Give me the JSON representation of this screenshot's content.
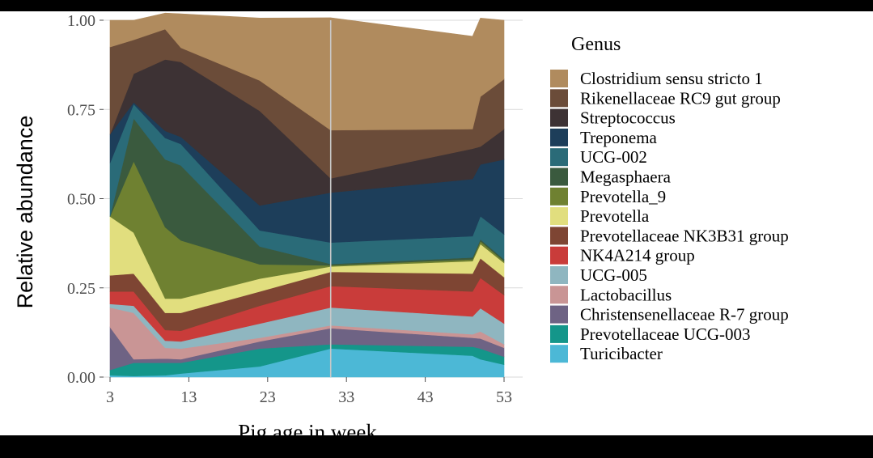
{
  "chart_data": {
    "type": "area",
    "stacked": true,
    "xlabel": "Pig age in week",
    "ylabel": "Relative abundance",
    "xlim": [
      3,
      53
    ],
    "ylim": [
      0,
      1
    ],
    "x_ticks": [
      3,
      13,
      23,
      33,
      43,
      53
    ],
    "y_ticks": [
      0,
      0.25,
      0.5,
      0.75,
      1
    ],
    "y_tick_labels": [
      "0.00",
      "0.25",
      "0.50",
      "0.75",
      "1.00"
    ],
    "grid": true,
    "vertical_reference_line": 31,
    "legend": {
      "title": "Genus",
      "position": "right"
    },
    "x": [
      3,
      6,
      10,
      12,
      22,
      31,
      49,
      50,
      53
    ],
    "series": [
      {
        "name": "Turicibacter",
        "color": "#4cb8d6",
        "values": [
          0.005,
          0.003,
          0.005,
          0.01,
          0.03,
          0.08,
          0.06,
          0.05,
          0.035
        ]
      },
      {
        "name": "Prevotellaceae UCG-003",
        "color": "#14968a",
        "values": [
          0.015,
          0.037,
          0.035,
          0.03,
          0.05,
          0.012,
          0.025,
          0.03,
          0.022
        ]
      },
      {
        "name": "Christensenellaceae R-7 group",
        "color": "#6e6384",
        "values": [
          0.12,
          0.01,
          0.012,
          0.01,
          0.02,
          0.045,
          0.025,
          0.028,
          0.025
        ]
      },
      {
        "name": "Lactobacillus",
        "color": "#c99595",
        "values": [
          0.055,
          0.13,
          0.03,
          0.03,
          0.01,
          0.008,
          0.01,
          0.02,
          0.01
        ]
      },
      {
        "name": "UCG-005",
        "color": "#8fb6c0",
        "values": [
          0.01,
          0.02,
          0.02,
          0.02,
          0.04,
          0.05,
          0.05,
          0.065,
          0.058
        ]
      },
      {
        "name": "NK4A214 group",
        "color": "#c93c3a",
        "values": [
          0.035,
          0.04,
          0.03,
          0.03,
          0.05,
          0.06,
          0.07,
          0.085,
          0.08
        ]
      },
      {
        "name": "Prevotellaceae NK3B31 group",
        "color": "#7e4533",
        "values": [
          0.045,
          0.05,
          0.048,
          0.05,
          0.04,
          0.04,
          0.05,
          0.055,
          0.05
        ]
      },
      {
        "name": "Prevotella",
        "color": "#e1de7e",
        "values": [
          0.165,
          0.115,
          0.04,
          0.04,
          0.036,
          0.015,
          0.035,
          0.04,
          0.04
        ]
      },
      {
        "name": "Prevotella_9",
        "color": "#6f8131",
        "values": [
          0.0,
          0.2,
          0.2,
          0.163,
          0.04,
          0.003,
          0.005,
          0.008,
          0.005
        ]
      },
      {
        "name": "Megasphaera",
        "color": "#3a5a3e",
        "values": [
          0.0,
          0.12,
          0.19,
          0.21,
          0.05,
          0.004,
          0.005,
          0.005,
          0.005
        ]
      },
      {
        "name": "UCG-002",
        "color": "#2a6b78",
        "values": [
          0.15,
          0.04,
          0.06,
          0.06,
          0.045,
          0.06,
          0.06,
          0.065,
          0.07
        ]
      },
      {
        "name": "Treponema",
        "color": "#1d3e5a",
        "values": [
          0.08,
          0.005,
          0.02,
          0.02,
          0.07,
          0.14,
          0.16,
          0.145,
          0.21
        ]
      },
      {
        "name": "Streptococcus",
        "color": "#3d3234",
        "values": [
          0.0,
          0.08,
          0.2,
          0.21,
          0.265,
          0.04,
          0.085,
          0.05,
          0.085
        ]
      },
      {
        "name": "Rikenellaceae RC9 gut group",
        "color": "#6b4c39",
        "values": [
          0.245,
          0.095,
          0.085,
          0.04,
          0.085,
          0.135,
          0.055,
          0.14,
          0.14
        ]
      },
      {
        "name": "Clostridium sensu stricto 1",
        "color": "#b08b5e",
        "values": [
          0.075,
          0.055,
          0.045,
          0.095,
          0.175,
          0.315,
          0.26,
          0.22,
          0.165
        ]
      }
    ]
  }
}
